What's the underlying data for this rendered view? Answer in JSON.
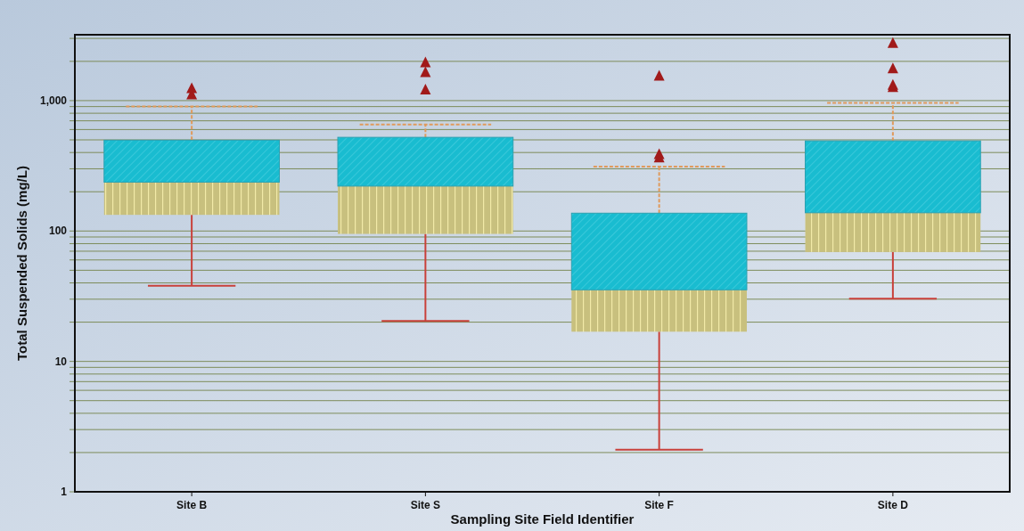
{
  "chart_data": {
    "type": "box",
    "xlabel": "Sampling Site Field Identifier",
    "ylabel": "Total Suspended Solids (mg/L)",
    "categories": [
      "Site B",
      "Site S",
      "Site F",
      "Site D"
    ],
    "boxes": [
      {
        "low": 38,
        "q1": 133,
        "median": 237,
        "q3": 497,
        "high": 903,
        "outliers": [
          1107,
          1236
        ]
      },
      {
        "low": 20.4,
        "q1": 95,
        "median": 221,
        "q3": 523,
        "high": 656,
        "outliers": [
          1205,
          1640,
          1950
        ]
      },
      {
        "low": 2.1,
        "q1": 16.9,
        "median": 35.4,
        "q3": 137,
        "high": 312,
        "outliers": [
          363,
          386,
          1540
        ]
      },
      {
        "low": 30.3,
        "q1": 69,
        "median": 138,
        "q3": 491,
        "high": 962,
        "outliers": [
          1260,
          1310,
          1755,
          2743
        ]
      }
    ],
    "log": true,
    "ylim": [
      1,
      3200
    ],
    "yticks": [
      1,
      {
        "value": 2,
        "label": null
      },
      {
        "value": 3,
        "label": null
      },
      {
        "value": 4,
        "label": null
      },
      {
        "value": 5,
        "label": null
      },
      {
        "value": 6,
        "label": null
      },
      {
        "value": 7,
        "label": null
      },
      {
        "value": 8,
        "label": null
      },
      {
        "value": 9,
        "label": null
      },
      10,
      {
        "value": 20,
        "label": null
      },
      {
        "value": 30,
        "label": null
      },
      {
        "value": 40,
        "label": null
      },
      {
        "value": 50,
        "label": null
      },
      {
        "value": 60,
        "label": null
      },
      {
        "value": 70,
        "label": null
      },
      {
        "value": 80,
        "label": null
      },
      {
        "value": 90,
        "label": null
      },
      100,
      {
        "value": 200,
        "label": null
      },
      {
        "value": 300,
        "label": null
      },
      {
        "value": 400,
        "label": null
      },
      {
        "value": 500,
        "label": null
      },
      {
        "value": 600,
        "label": null
      },
      {
        "value": 700,
        "label": null
      },
      {
        "value": 800,
        "label": null
      },
      {
        "value": 900,
        "label": null
      },
      {
        "value": 1000,
        "label": "1,000"
      },
      {
        "value": 2000,
        "label": null
      },
      {
        "value": 3000,
        "label": null
      }
    ],
    "grid": true,
    "marker": "triangle"
  }
}
